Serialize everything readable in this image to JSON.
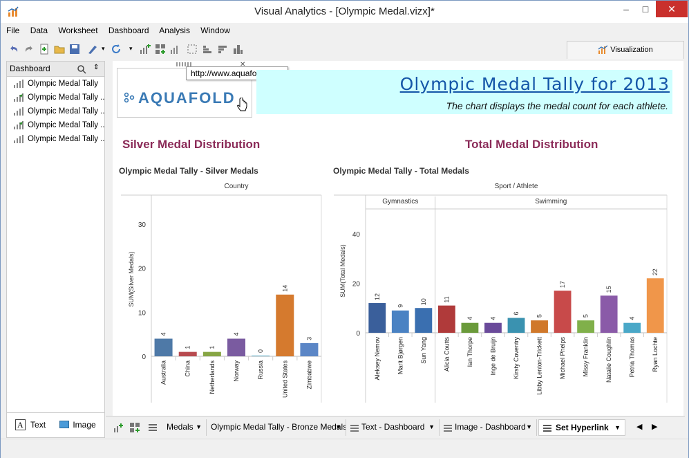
{
  "window": {
    "title": "Visual Analytics - [Olympic Medal.vizx]*"
  },
  "menu": [
    "File",
    "Data",
    "Worksheet",
    "Dashboard",
    "Analysis",
    "Window"
  ],
  "viz_tab": "Visualization",
  "sidebar": {
    "title": "Dashboard",
    "items": [
      {
        "label": "Olympic Medal Tally",
        "icon": "bar-chart-icon"
      },
      {
        "label": "Olympic Medal Tally ...",
        "icon": "edit-chart-icon"
      },
      {
        "label": "Olympic Medal Tally ...",
        "icon": "bar-chart-icon"
      },
      {
        "label": "Olympic Medal Tally ...",
        "icon": "edit-chart-icon"
      },
      {
        "label": "Olympic Medal Tally ...",
        "icon": "bar-chart-icon"
      }
    ],
    "footer": {
      "text": "Text",
      "image": "Image"
    }
  },
  "logo": {
    "text": "AQUAFOLD",
    "tooltip": "http://www.aquafold.com/"
  },
  "banner": {
    "title": "Olympic Medal Tally for 2013",
    "subtitle": "The chart displays the medal count for each athlete."
  },
  "sections": {
    "left": "Silver Medal Distribution",
    "right": "Total Medal Distribution"
  },
  "chart_data": [
    {
      "type": "bar",
      "title": "Olympic Medal Tally - Silver Medals",
      "header": "Country",
      "ylabel": "SUM(Silver Medals)",
      "ylim": [
        0,
        35
      ],
      "yticks": [
        0,
        10,
        20,
        30
      ],
      "categories": [
        "Australia",
        "China",
        "Netherlands",
        "Norway",
        "Russia",
        "United States",
        "Zimbabwe"
      ],
      "values": [
        4,
        1,
        1,
        4,
        0,
        14,
        3
      ],
      "colors": [
        "#4e79a7",
        "#b84a4f",
        "#86a543",
        "#7a5ba0",
        "#4aa3c0",
        "#d57a2e",
        "#5b86c6"
      ]
    },
    {
      "type": "bar",
      "title": "Olympic Medal Tally - Total Medals",
      "header": "Sport / Athlete",
      "groups": [
        {
          "name": "Gymnastics",
          "count": 3
        },
        {
          "name": "Swimming",
          "count": 10
        }
      ],
      "ylabel": "SUM(Total Medals)",
      "ylim": [
        0,
        50
      ],
      "yticks": [
        0,
        20,
        40
      ],
      "categories": [
        "Aleksey Nemov",
        "Marit Bjørgen",
        "Sun Yang",
        "Alicia Coutts",
        "Ian Thorpe",
        "Inge de Bruijn",
        "Kirsty Coventry",
        "Libby Lenton-Trickett",
        "Michael Phelps",
        "Missy Franklin",
        "Natalie Coughlin",
        "Petria Thomas",
        "Ryan Lochte"
      ],
      "values": [
        12,
        9,
        10,
        11,
        4,
        4,
        6,
        5,
        17,
        5,
        15,
        4,
        22
      ],
      "colors": [
        "#3a5f9b",
        "#4a82c3",
        "#3a6fb0",
        "#b03a3a",
        "#6a9a3a",
        "#6a4a9a",
        "#3a92b0",
        "#d0782a",
        "#c84a4a",
        "#80b04a",
        "#8a5aa8",
        "#4aa8c8",
        "#f0964a"
      ]
    }
  ],
  "tabs": [
    "Medals",
    "Olympic Medal Tally - Bronze Medals",
    "Text - Dashboard",
    "Image - Dashboard",
    "Set Hyperlink"
  ]
}
